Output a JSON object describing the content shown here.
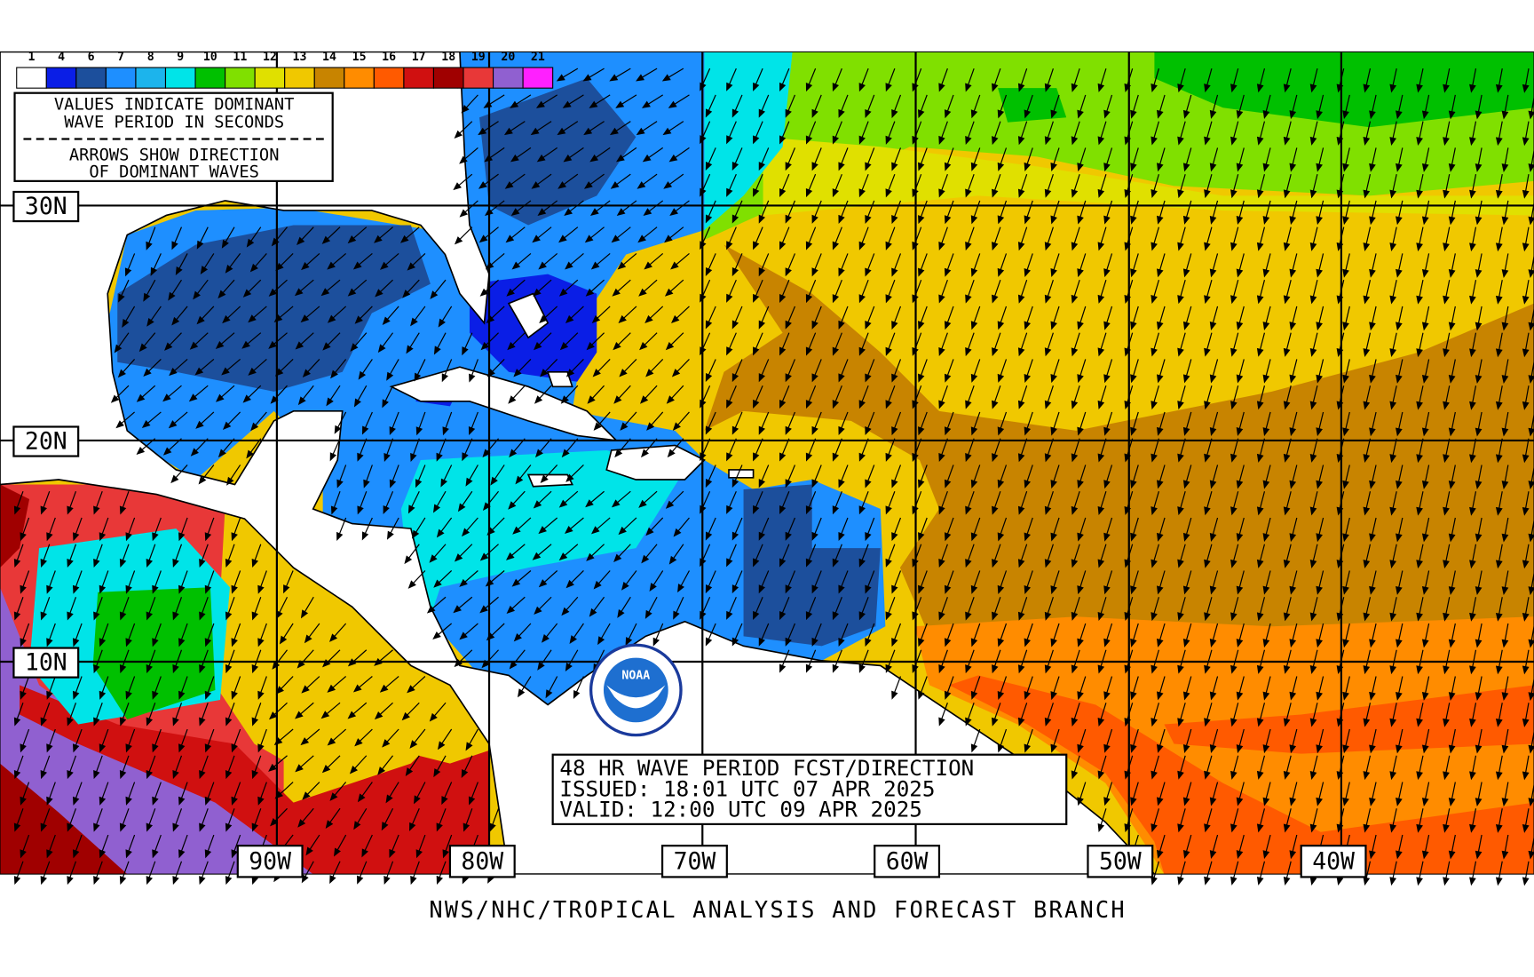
{
  "legend": {
    "labels": [
      "1",
      "4",
      "6",
      "7",
      "8",
      "9",
      "10",
      "11",
      "12",
      "13",
      "14",
      "15",
      "16",
      "17",
      "18",
      "19",
      "20",
      "21"
    ],
    "colors": [
      "#ffffff",
      "#0a1ee6",
      "#1c4f9c",
      "#1e8fff",
      "#1cb4ec",
      "#00e4e8",
      "#00c000",
      "#80e000",
      "#e0e000",
      "#f0c800",
      "#c88400",
      "#ff8c00",
      "#ff5a00",
      "#d01010",
      "#a00000",
      "#e83838",
      "#9060d0",
      "#ff20ff"
    ]
  },
  "info_box": {
    "lines": [
      "VALUES INDICATE DOMINANT",
      "WAVE PERIOD IN SECONDS",
      "ARROWS SHOW DIRECTION",
      "OF DOMINANT WAVES"
    ]
  },
  "grid": {
    "lat_labels": [
      "30N",
      "20N",
      "10N"
    ],
    "lon_labels": [
      "90W",
      "80W",
      "70W",
      "60W",
      "50W",
      "40W"
    ]
  },
  "forecast_box": {
    "lines": [
      "48 HR WAVE PERIOD FCST/DIRECTION",
      "ISSUED:  18:01 UTC 07 APR 2025",
      "VALID:   12:00 UTC 09 APR 2025"
    ]
  },
  "logo": {
    "text": "NOAA"
  },
  "footer": "NWS/NHC/TROPICAL ANALYSIS AND FORECAST BRANCH"
}
